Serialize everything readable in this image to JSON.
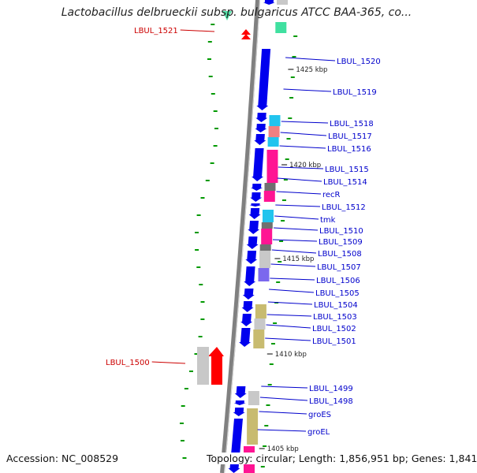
{
  "title": "Lactobacillus delbrueckii subsp. bulgaricus ATCC BAA-365, co...",
  "footer": {
    "accession": "Accession: NC_008529",
    "topology": "Topology: circular; Length: 1,856,951 bp; Genes: 1,841"
  },
  "colors": {
    "forward_gene": "#0000ee",
    "label_blue": "#0000cc",
    "label_red": "#cc0000",
    "backbone": "#808080",
    "tick": "#009900",
    "cog_cyan": "#22c4ee",
    "cog_salmon": "#f08080",
    "cog_magenta": "#ff1493",
    "cog_gray": "#c8c8c8",
    "cog_darkgray": "#707070",
    "cog_purple": "#7b68ee",
    "cog_olive": "#c8bb70",
    "cog_green": "#40e0a0",
    "reverse_red": "#ff0000"
  },
  "position_labels": [
    "1425 kbp",
    "1420 kbp",
    "1415 kbp",
    "1410 kbp",
    "1405 kbp"
  ],
  "gene_labels_blue": [
    "LBUL_1520",
    "LBUL_1519",
    "LBUL_1518",
    "LBUL_1517",
    "LBUL_1516",
    "LBUL_1515",
    "LBUL_1514",
    "recR",
    "LBUL_1512",
    "tmk",
    "LBUL_1510",
    "LBUL_1509",
    "LBUL_1508",
    "LBUL_1507",
    "LBUL_1506",
    "LBUL_1505",
    "LBUL_1504",
    "LBUL_1503",
    "LBUL_1502",
    "LBUL_1501",
    "LBUL_1499",
    "LBUL_1498",
    "groES",
    "groEL"
  ],
  "gene_labels_red": [
    "LBUL_1521",
    "LBUL_1500"
  ]
}
